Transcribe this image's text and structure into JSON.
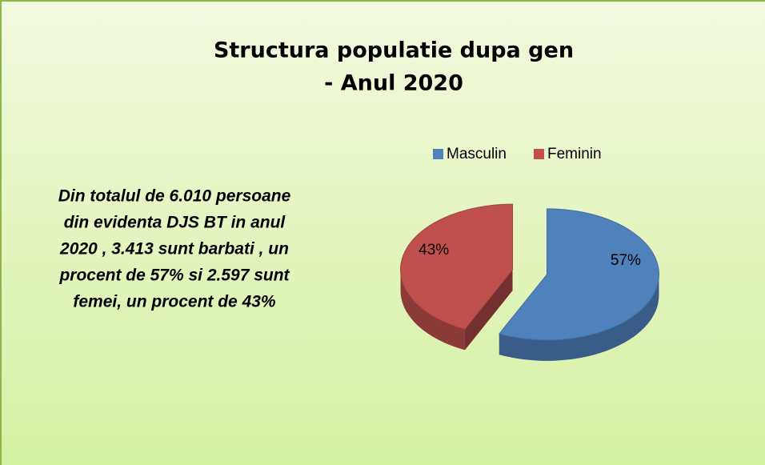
{
  "chart_data": {
    "type": "pie3d",
    "title": [
      "Structura populatie dupa gen",
      "- Anul 2020"
    ],
    "annotation": [
      "Din totalul de 6.010 persoane",
      "din evidenta DJS BT in anul",
      "2020 , 3.413 sunt barbati , un",
      "procent de 57% si 2.597 sunt",
      "femei, un procent de 43%"
    ],
    "categories": [
      "Masculin",
      "Feminin"
    ],
    "values": [
      57,
      43
    ],
    "value_labels": [
      "57%",
      "43%"
    ],
    "colors": [
      "#4f81bd",
      "#c0504d"
    ],
    "legend": "top"
  }
}
